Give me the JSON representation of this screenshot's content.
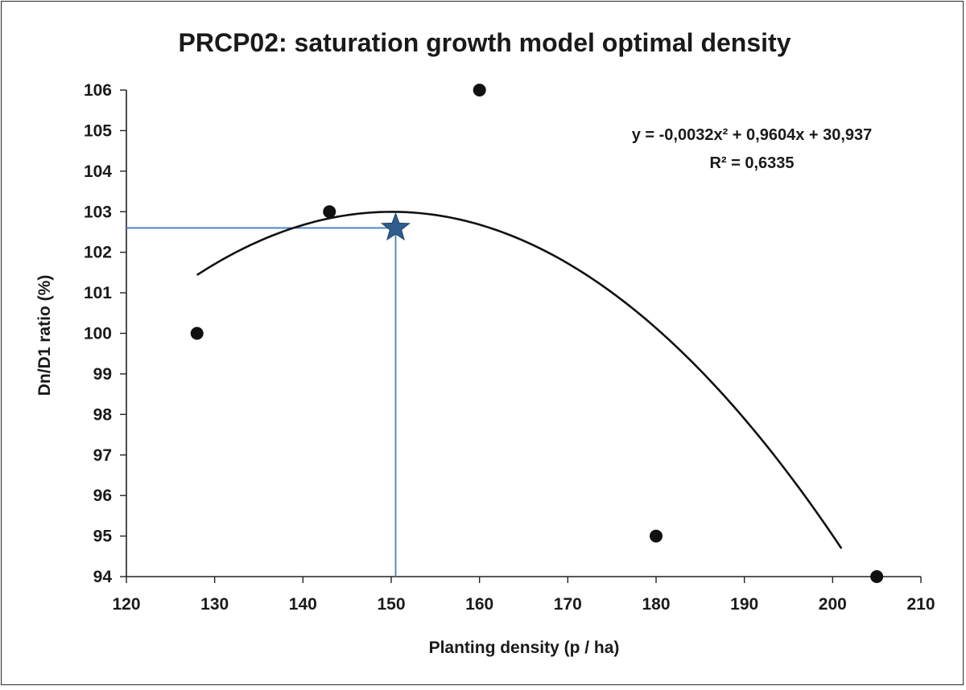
{
  "chart_data": {
    "type": "scatter",
    "title": "PRCP02: saturation growth model optimal density",
    "xlabel": "Planting density (p / ha)",
    "ylabel": "Dn/D1 ratio (%)",
    "xlim": [
      120,
      210
    ],
    "ylim": [
      94,
      106
    ],
    "x_ticks": [
      120,
      130,
      140,
      150,
      160,
      170,
      180,
      190,
      200,
      210
    ],
    "y_ticks": [
      94,
      95,
      96,
      97,
      98,
      99,
      100,
      101,
      102,
      103,
      104,
      105,
      106
    ],
    "grid": false,
    "points": [
      {
        "x": 128,
        "y": 100
      },
      {
        "x": 143,
        "y": 103
      },
      {
        "x": 160,
        "y": 106
      },
      {
        "x": 180,
        "y": 95
      },
      {
        "x": 205,
        "y": 94
      }
    ],
    "trendline": {
      "type": "polynomial",
      "coefficients": [
        -0.0032,
        0.9604,
        30.937
      ],
      "x_start": 128,
      "x_end": 201,
      "equation": "y = -0,0032x² + 0,9604x + 30,937",
      "r_squared": "R² = 0,6335",
      "color": "#111111"
    },
    "optimum": {
      "x": 150.5,
      "y": 102.6,
      "marker": "star",
      "marker_color": "#2e5d8e",
      "guide_line_color": "#4a7ebf"
    },
    "point_color": "#111111"
  }
}
